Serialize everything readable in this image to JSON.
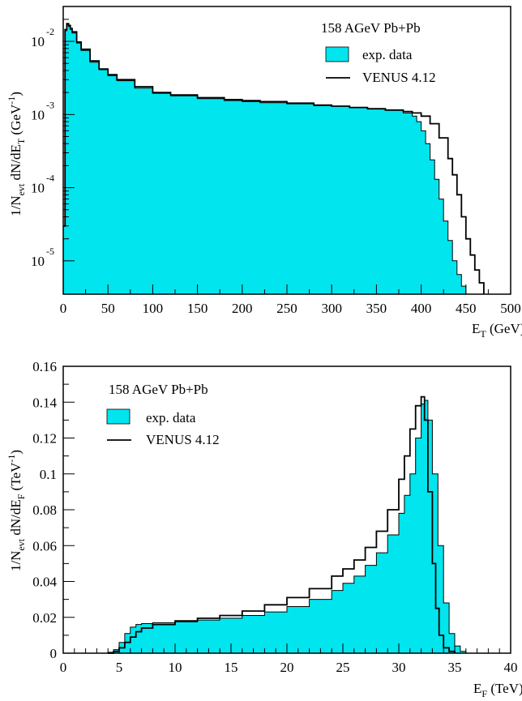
{
  "chart_data": [
    {
      "type": "area",
      "title": "158 AGeV Pb+Pb",
      "xlabel": "E_T (GeV)",
      "ylabel": "1/N_evt dN/dE_T (GeV^-1)",
      "xlim": [
        0,
        500
      ],
      "ylim": [
        3.5e-06,
        0.03
      ],
      "yscale": "log",
      "grid": false,
      "legend_position": "top-right",
      "x_ticks": [
        "0",
        "50",
        "100",
        "150",
        "200",
        "250",
        "300",
        "350",
        "400",
        "450",
        "500"
      ],
      "y_ticks": [
        {
          "base": "10",
          "exp": "-2",
          "value": 0.01
        },
        {
          "base": "10",
          "exp": "-3",
          "value": 0.001
        },
        {
          "base": "10",
          "exp": "-4",
          "value": 0.0001
        },
        {
          "base": "10",
          "exp": "-5",
          "value": 1e-05
        }
      ],
      "legend": [
        {
          "label": "exp. data",
          "style": "fill"
        },
        {
          "label": "VENUS 4.12",
          "style": "line"
        }
      ],
      "series": [
        {
          "name": "exp. data",
          "style": "fill",
          "x": [
            0,
            2,
            4,
            6,
            8,
            10,
            15,
            20,
            30,
            40,
            50,
            60,
            80,
            100,
            120,
            150,
            180,
            200,
            220,
            250,
            280,
            300,
            320,
            340,
            360,
            380,
            390,
            395,
            400,
            405,
            410,
            415,
            420,
            425,
            430,
            435,
            440,
            445,
            450
          ],
          "y": [
            3e-05,
            0.014,
            0.017,
            0.016,
            0.0145,
            0.013,
            0.0095,
            0.0075,
            0.0052,
            0.0041,
            0.0034,
            0.0029,
            0.0023,
            0.00195,
            0.0018,
            0.00165,
            0.00155,
            0.0015,
            0.00145,
            0.0014,
            0.00132,
            0.0013,
            0.00125,
            0.0012,
            0.00115,
            0.00105,
            0.00095,
            0.0008,
            0.0006,
            0.0004,
            0.00024,
            0.00013,
            7e-05,
            3.5e-05,
            1.9e-05,
            1e-05,
            6.5e-06,
            4.5e-06,
            3.5e-06
          ]
        },
        {
          "name": "VENUS 4.12",
          "style": "line",
          "x": [
            0,
            2,
            4,
            6,
            8,
            10,
            15,
            20,
            30,
            40,
            50,
            60,
            80,
            100,
            120,
            150,
            180,
            200,
            220,
            250,
            280,
            300,
            320,
            340,
            360,
            380,
            390,
            400,
            410,
            420,
            430,
            435,
            440,
            445,
            450,
            455,
            460,
            465,
            470
          ],
          "y": [
            3e-05,
            0.0145,
            0.0175,
            0.0165,
            0.015,
            0.0135,
            0.0098,
            0.0078,
            0.0054,
            0.0042,
            0.0035,
            0.003,
            0.0024,
            0.002,
            0.00185,
            0.0017,
            0.0016,
            0.00155,
            0.0015,
            0.00143,
            0.00135,
            0.0013,
            0.00125,
            0.0012,
            0.00115,
            0.0011,
            0.00105,
            0.00095,
            0.00075,
            0.00048,
            0.00025,
            0.00015,
            8e-05,
            4e-05,
            2e-05,
            1.2e-05,
            7.5e-06,
            5e-06,
            3.5e-06
          ]
        }
      ]
    },
    {
      "type": "area",
      "title": "158 AGeV Pb+Pb",
      "xlabel": "E_F (TeV)",
      "ylabel": "1/N_evt dN/dE_F (TeV^-1)",
      "xlim": [
        0,
        40
      ],
      "ylim": [
        0,
        0.16
      ],
      "grid": false,
      "legend_position": "top-left",
      "x_ticks": [
        "0",
        "5",
        "10",
        "15",
        "20",
        "25",
        "30",
        "35",
        "40"
      ],
      "y_ticks": [
        "0",
        "0.02",
        "0.04",
        "0.06",
        "0.08",
        "0.1",
        "0.12",
        "0.14",
        "0.16"
      ],
      "legend": [
        {
          "label": "exp. data",
          "style": "fill"
        },
        {
          "label": "VENUS 4.12",
          "style": "line"
        }
      ],
      "series": [
        {
          "name": "exp. data",
          "style": "fill",
          "x": [
            3.5,
            4,
            4.5,
            5,
            5.5,
            6,
            6.5,
            7,
            8,
            10,
            12,
            14,
            16,
            18,
            20,
            22,
            24,
            25,
            26,
            27,
            28,
            29,
            30,
            30.5,
            31,
            31.5,
            32,
            32.3,
            32.6,
            33,
            33.5,
            34,
            34.5,
            35,
            35.5,
            36
          ],
          "y": [
            0,
            0.0005,
            0.002,
            0.006,
            0.011,
            0.0145,
            0.016,
            0.0165,
            0.017,
            0.0175,
            0.0185,
            0.0195,
            0.021,
            0.023,
            0.026,
            0.03,
            0.035,
            0.039,
            0.043,
            0.049,
            0.056,
            0.066,
            0.078,
            0.088,
            0.1,
            0.12,
            0.139,
            0.141,
            0.13,
            0.1,
            0.06,
            0.028,
            0.011,
            0.004,
            0.001,
            0
          ]
        },
        {
          "name": "VENUS 4.12",
          "style": "line",
          "x": [
            4,
            4.5,
            5,
            5.5,
            6,
            6.5,
            7,
            8,
            10,
            12,
            14,
            16,
            18,
            20,
            22,
            24,
            25,
            26,
            27,
            28,
            29,
            30,
            30.5,
            31,
            31.5,
            32,
            32.3,
            32.6,
            33,
            33.3,
            33.6,
            34,
            34.5,
            35
          ],
          "y": [
            0,
            0.001,
            0.003,
            0.006,
            0.009,
            0.012,
            0.014,
            0.016,
            0.018,
            0.0195,
            0.021,
            0.0235,
            0.027,
            0.031,
            0.036,
            0.043,
            0.047,
            0.052,
            0.059,
            0.068,
            0.08,
            0.097,
            0.11,
            0.125,
            0.138,
            0.143,
            0.13,
            0.09,
            0.05,
            0.025,
            0.01,
            0.003,
            0.001,
            0
          ]
        }
      ]
    }
  ]
}
